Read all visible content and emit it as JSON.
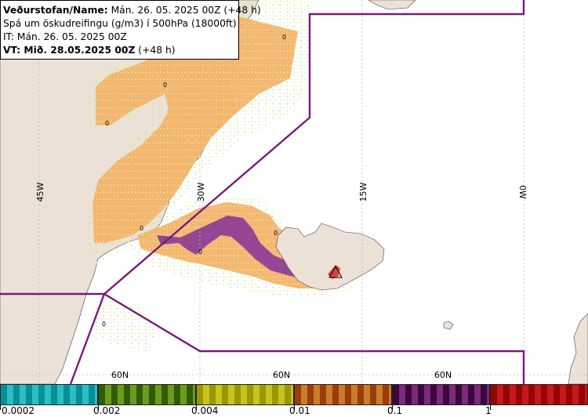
{
  "header": {
    "line1_bold": "Veðurstofan/Name:",
    "line1_rest": " Mán. 26. 05. 2025 00Z (+48 h)",
    "line2": "Spá um öskudreifingu (g/m3) í 500hPa (18000ft)",
    "line3": "IT: Mán. 26. 05. 2025 00Z",
    "line4_bold": "VT: Mið. 28.05.2025 00Z",
    "line4_rest": " (+48 h)"
  },
  "grid": {
    "lon_labels": [
      "45W",
      "30W",
      "15W",
      "0W"
    ],
    "lat_labels": [
      "60N",
      "60N",
      "60N"
    ]
  },
  "contour_labels": [
    "0",
    "0",
    "0",
    "0",
    "0",
    "0",
    "0"
  ],
  "legend": {
    "colors": [
      "#2bbfc4",
      "#6f9a1e",
      "#c7c41d",
      "#c77d2c",
      "#7c2a7c",
      "#c41a1a"
    ],
    "labels": [
      "0.0002",
      "0.002",
      "0.004",
      "0.01",
      "0.1",
      "1"
    ]
  },
  "colors": {
    "land": "#ece1d6",
    "ash_low": "#f6b36a",
    "ash_mid": "#8b3a97",
    "ash_high": "#d3342a",
    "boundary": "#7b1a7b",
    "grid": "#b8b8b8"
  }
}
